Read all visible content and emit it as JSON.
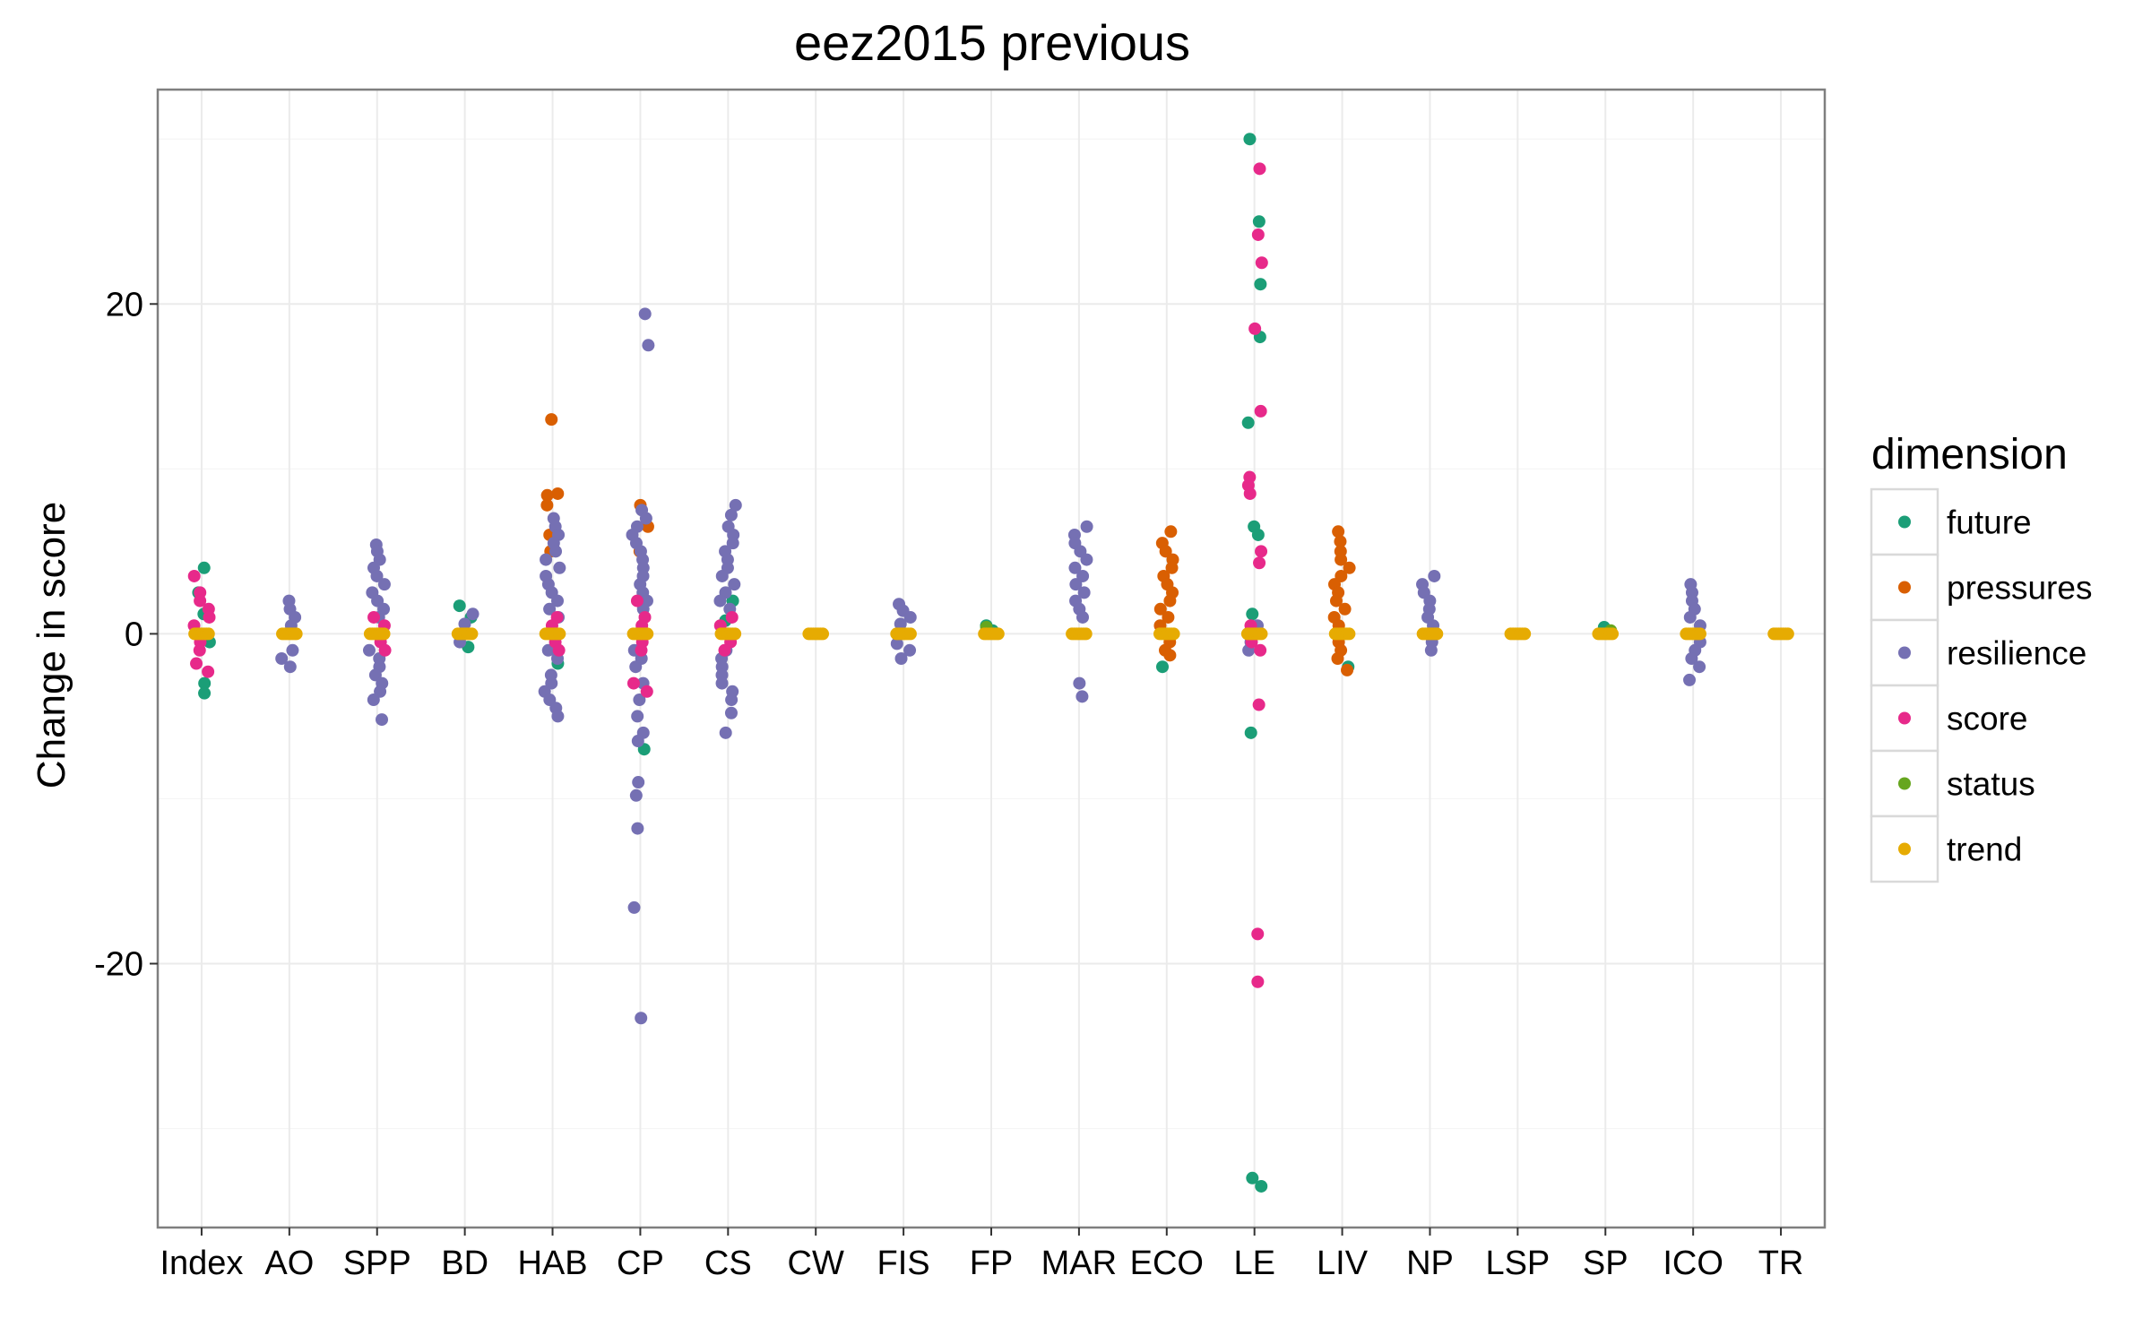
{
  "chart_data": {
    "type": "scatter",
    "title": "eez2015 previous",
    "xlabel": "",
    "ylabel": "Change in score",
    "ylim": [
      -36,
      33
    ],
    "yticks": [
      -20,
      0,
      20
    ],
    "ytick_labels": [
      "-20",
      "0",
      "20"
    ],
    "grid": true,
    "legend_title": "dimension",
    "legend_position": "right",
    "categories": [
      "Index",
      "AO",
      "SPP",
      "BD",
      "HAB",
      "CP",
      "CS",
      "CW",
      "FIS",
      "FP",
      "MAR",
      "ECO",
      "LE",
      "LIV",
      "NP",
      "LSP",
      "SP",
      "ICO",
      "TR"
    ],
    "series": [
      {
        "name": "future",
        "color": "#1b9e77",
        "points": [
          [
            "Index",
            4.0
          ],
          [
            "Index",
            2.5
          ],
          [
            "Index",
            1.2
          ],
          [
            "Index",
            -0.5
          ],
          [
            "Index",
            -3.0
          ],
          [
            "Index",
            -3.6
          ],
          [
            "BD",
            1.7
          ],
          [
            "BD",
            1.0
          ],
          [
            "BD",
            -0.8
          ],
          [
            "HAB",
            -1.8
          ],
          [
            "CP",
            -7.0
          ],
          [
            "CS",
            0.8
          ],
          [
            "CS",
            2.0
          ],
          [
            "FP",
            0.5
          ],
          [
            "FP",
            0.2
          ],
          [
            "ECO",
            -2.0
          ],
          [
            "LE",
            30.0
          ],
          [
            "LE",
            25.0
          ],
          [
            "LE",
            21.2
          ],
          [
            "LE",
            18.0
          ],
          [
            "LE",
            12.8
          ],
          [
            "LE",
            6.5
          ],
          [
            "LE",
            6.0
          ],
          [
            "LE",
            1.2
          ],
          [
            "LE",
            -6.0
          ],
          [
            "LE",
            -33.0
          ],
          [
            "LE",
            -33.5
          ],
          [
            "LIV",
            -2.0
          ],
          [
            "SP",
            0.4
          ]
        ]
      },
      {
        "name": "pressures",
        "color": "#d95f02",
        "points": [
          [
            "HAB",
            13.0
          ],
          [
            "HAB",
            8.5
          ],
          [
            "HAB",
            8.4
          ],
          [
            "HAB",
            7.8
          ],
          [
            "HAB",
            6.0
          ],
          [
            "HAB",
            5.0
          ],
          [
            "CP",
            7.8
          ],
          [
            "CP",
            6.5
          ],
          [
            "CP",
            5.0
          ],
          [
            "ECO",
            6.2
          ],
          [
            "ECO",
            5.5
          ],
          [
            "ECO",
            5.0
          ],
          [
            "ECO",
            4.5
          ],
          [
            "ECO",
            4.0
          ],
          [
            "ECO",
            3.5
          ],
          [
            "ECO",
            3.0
          ],
          [
            "ECO",
            2.5
          ],
          [
            "ECO",
            2.0
          ],
          [
            "ECO",
            1.5
          ],
          [
            "ECO",
            1.0
          ],
          [
            "ECO",
            0.5
          ],
          [
            "ECO",
            -0.5
          ],
          [
            "ECO",
            -1.0
          ],
          [
            "ECO",
            -1.3
          ],
          [
            "LIV",
            6.2
          ],
          [
            "LIV",
            5.6
          ],
          [
            "LIV",
            5.0
          ],
          [
            "LIV",
            4.5
          ],
          [
            "LIV",
            4.0
          ],
          [
            "LIV",
            3.5
          ],
          [
            "LIV",
            3.0
          ],
          [
            "LIV",
            2.5
          ],
          [
            "LIV",
            2.0
          ],
          [
            "LIV",
            1.5
          ],
          [
            "LIV",
            1.0
          ],
          [
            "LIV",
            0.5
          ],
          [
            "LIV",
            -0.5
          ],
          [
            "LIV",
            -1.0
          ],
          [
            "LIV",
            -1.5
          ],
          [
            "LIV",
            -2.2
          ]
        ]
      },
      {
        "name": "resilience",
        "color": "#7570b3",
        "points": [
          [
            "AO",
            2.0
          ],
          [
            "AO",
            1.5
          ],
          [
            "AO",
            1.0
          ],
          [
            "AO",
            0.5
          ],
          [
            "AO",
            -1.0
          ],
          [
            "AO",
            -1.5
          ],
          [
            "AO",
            -2.0
          ],
          [
            "SPP",
            5.4
          ],
          [
            "SPP",
            5.0
          ],
          [
            "SPP",
            4.5
          ],
          [
            "SPP",
            4.0
          ],
          [
            "SPP",
            3.5
          ],
          [
            "SPP",
            3.0
          ],
          [
            "SPP",
            2.5
          ],
          [
            "SPP",
            2.0
          ],
          [
            "SPP",
            1.5
          ],
          [
            "SPP",
            1.0
          ],
          [
            "SPP",
            -1.0
          ],
          [
            "SPP",
            -1.5
          ],
          [
            "SPP",
            -2.0
          ],
          [
            "SPP",
            -2.5
          ],
          [
            "SPP",
            -3.0
          ],
          [
            "SPP",
            -3.5
          ],
          [
            "SPP",
            -4.0
          ],
          [
            "SPP",
            -5.2
          ],
          [
            "BD",
            1.2
          ],
          [
            "BD",
            0.6
          ],
          [
            "BD",
            -0.5
          ],
          [
            "HAB",
            7.0
          ],
          [
            "HAB",
            6.5
          ],
          [
            "HAB",
            6.0
          ],
          [
            "HAB",
            5.5
          ],
          [
            "HAB",
            5.0
          ],
          [
            "HAB",
            4.5
          ],
          [
            "HAB",
            4.0
          ],
          [
            "HAB",
            3.5
          ],
          [
            "HAB",
            3.0
          ],
          [
            "HAB",
            2.5
          ],
          [
            "HAB",
            2.0
          ],
          [
            "HAB",
            1.5
          ],
          [
            "HAB",
            1.0
          ],
          [
            "HAB",
            -1.0
          ],
          [
            "HAB",
            -1.5
          ],
          [
            "HAB",
            -2.5
          ],
          [
            "HAB",
            -3.0
          ],
          [
            "HAB",
            -3.5
          ],
          [
            "HAB",
            -4.0
          ],
          [
            "HAB",
            -4.5
          ],
          [
            "HAB",
            -5.0
          ],
          [
            "CP",
            19.4
          ],
          [
            "CP",
            17.5
          ],
          [
            "CP",
            7.5
          ],
          [
            "CP",
            7.0
          ],
          [
            "CP",
            6.5
          ],
          [
            "CP",
            6.0
          ],
          [
            "CP",
            5.5
          ],
          [
            "CP",
            5.0
          ],
          [
            "CP",
            4.5
          ],
          [
            "CP",
            4.0
          ],
          [
            "CP",
            3.5
          ],
          [
            "CP",
            3.0
          ],
          [
            "CP",
            2.5
          ],
          [
            "CP",
            2.0
          ],
          [
            "CP",
            1.5
          ],
          [
            "CP",
            -1.0
          ],
          [
            "CP",
            -1.5
          ],
          [
            "CP",
            -2.0
          ],
          [
            "CP",
            -3.0
          ],
          [
            "CP",
            -4.0
          ],
          [
            "CP",
            -5.0
          ],
          [
            "CP",
            -6.0
          ],
          [
            "CP",
            -6.5
          ],
          [
            "CP",
            -9.0
          ],
          [
            "CP",
            -9.8
          ],
          [
            "CP",
            -11.8
          ],
          [
            "CP",
            -16.6
          ],
          [
            "CP",
            -23.3
          ],
          [
            "CS",
            7.8
          ],
          [
            "CS",
            7.2
          ],
          [
            "CS",
            6.5
          ],
          [
            "CS",
            6.0
          ],
          [
            "CS",
            5.5
          ],
          [
            "CS",
            5.0
          ],
          [
            "CS",
            4.5
          ],
          [
            "CS",
            4.0
          ],
          [
            "CS",
            3.5
          ],
          [
            "CS",
            3.0
          ],
          [
            "CS",
            2.5
          ],
          [
            "CS",
            2.0
          ],
          [
            "CS",
            1.5
          ],
          [
            "CS",
            -1.0
          ],
          [
            "CS",
            -1.5
          ],
          [
            "CS",
            -2.0
          ],
          [
            "CS",
            -2.5
          ],
          [
            "CS",
            -3.0
          ],
          [
            "CS",
            -3.5
          ],
          [
            "CS",
            -4.0
          ],
          [
            "CS",
            -4.8
          ],
          [
            "CS",
            -6.0
          ],
          [
            "FIS",
            1.8
          ],
          [
            "FIS",
            1.4
          ],
          [
            "FIS",
            1.0
          ],
          [
            "FIS",
            0.6
          ],
          [
            "FIS",
            -0.6
          ],
          [
            "FIS",
            -1.0
          ],
          [
            "FIS",
            -1.5
          ],
          [
            "MAR",
            6.5
          ],
          [
            "MAR",
            6.0
          ],
          [
            "MAR",
            5.5
          ],
          [
            "MAR",
            5.0
          ],
          [
            "MAR",
            4.5
          ],
          [
            "MAR",
            4.0
          ],
          [
            "MAR",
            3.5
          ],
          [
            "MAR",
            3.0
          ],
          [
            "MAR",
            2.5
          ],
          [
            "MAR",
            2.0
          ],
          [
            "MAR",
            1.5
          ],
          [
            "MAR",
            1.0
          ],
          [
            "MAR",
            -3.0
          ],
          [
            "MAR",
            -3.8
          ],
          [
            "LE",
            0.5
          ],
          [
            "LE",
            -0.5
          ],
          [
            "LE",
            -1.0
          ],
          [
            "NP",
            3.5
          ],
          [
            "NP",
            3.0
          ],
          [
            "NP",
            2.5
          ],
          [
            "NP",
            2.0
          ],
          [
            "NP",
            1.5
          ],
          [
            "NP",
            1.0
          ],
          [
            "NP",
            0.5
          ],
          [
            "NP",
            -0.5
          ],
          [
            "NP",
            -1.0
          ],
          [
            "ICO",
            3.0
          ],
          [
            "ICO",
            2.5
          ],
          [
            "ICO",
            2.0
          ],
          [
            "ICO",
            1.5
          ],
          [
            "ICO",
            1.0
          ],
          [
            "ICO",
            0.5
          ],
          [
            "ICO",
            -0.5
          ],
          [
            "ICO",
            -1.0
          ],
          [
            "ICO",
            -1.5
          ],
          [
            "ICO",
            -2.0
          ],
          [
            "ICO",
            -2.8
          ]
        ]
      },
      {
        "name": "score",
        "color": "#e7298a",
        "points": [
          [
            "Index",
            3.5
          ],
          [
            "Index",
            2.5
          ],
          [
            "Index",
            2.0
          ],
          [
            "Index",
            1.5
          ],
          [
            "Index",
            1.0
          ],
          [
            "Index",
            0.5
          ],
          [
            "Index",
            -0.5
          ],
          [
            "Index",
            -1.0
          ],
          [
            "Index",
            -1.8
          ],
          [
            "Index",
            -2.3
          ],
          [
            "SPP",
            1.0
          ],
          [
            "SPP",
            0.5
          ],
          [
            "SPP",
            -0.5
          ],
          [
            "SPP",
            -1.0
          ],
          [
            "HAB",
            1.0
          ],
          [
            "HAB",
            0.5
          ],
          [
            "HAB",
            -0.5
          ],
          [
            "HAB",
            -1.0
          ],
          [
            "CP",
            2.0
          ],
          [
            "CP",
            1.0
          ],
          [
            "CP",
            0.5
          ],
          [
            "CP",
            -0.5
          ],
          [
            "CP",
            -1.0
          ],
          [
            "CP",
            -3.0
          ],
          [
            "CP",
            -3.5
          ],
          [
            "CS",
            1.0
          ],
          [
            "CS",
            0.5
          ],
          [
            "CS",
            -0.5
          ],
          [
            "CS",
            -1.0
          ],
          [
            "LE",
            28.2
          ],
          [
            "LE",
            24.2
          ],
          [
            "LE",
            22.5
          ],
          [
            "LE",
            18.5
          ],
          [
            "LE",
            13.5
          ],
          [
            "LE",
            9.5
          ],
          [
            "LE",
            9.0
          ],
          [
            "LE",
            8.5
          ],
          [
            "LE",
            5.0
          ],
          [
            "LE",
            4.3
          ],
          [
            "LE",
            0.5
          ],
          [
            "LE",
            -0.5
          ],
          [
            "LE",
            -1.0
          ],
          [
            "LE",
            -4.3
          ],
          [
            "LE",
            -18.2
          ],
          [
            "LE",
            -21.1
          ]
        ]
      },
      {
        "name": "status",
        "color": "#66a61e",
        "points": [
          [
            "FP",
            0.4
          ],
          [
            "SP",
            0.2
          ]
        ]
      },
      {
        "name": "trend",
        "color": "#e6ab02",
        "points": [
          [
            "Index",
            0
          ],
          [
            "AO",
            0
          ],
          [
            "SPP",
            0
          ],
          [
            "BD",
            0
          ],
          [
            "HAB",
            0
          ],
          [
            "CP",
            0
          ],
          [
            "CS",
            0
          ],
          [
            "CW",
            0
          ],
          [
            "FIS",
            0
          ],
          [
            "FP",
            0
          ],
          [
            "MAR",
            0
          ],
          [
            "ECO",
            0
          ],
          [
            "LE",
            0
          ],
          [
            "LIV",
            0
          ],
          [
            "NP",
            0
          ],
          [
            "LSP",
            0
          ],
          [
            "SP",
            0
          ],
          [
            "ICO",
            0
          ],
          [
            "TR",
            0
          ]
        ]
      }
    ]
  }
}
